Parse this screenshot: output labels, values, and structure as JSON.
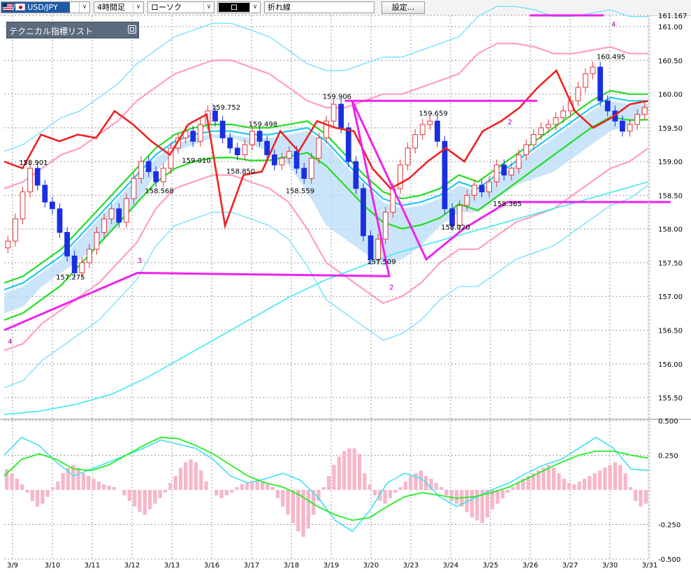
{
  "toolbar": {
    "pair": "USD/JPY",
    "timeframe": "4時間足",
    "chart_type": "ローソク",
    "chart_icon": "ロ",
    "line_type": "折れ線",
    "settings_label": "設定..."
  },
  "indicator_panel": {
    "title": "テクニカル指標リスト"
  },
  "colors": {
    "bull_candle": "#e0343a",
    "bear_candle": "#1a2fe0",
    "bollinger_outer": "#66ddff",
    "bollinger_inner": "#ff9ec0",
    "bollinger_mid": "#22dd22",
    "ma_cyan": "#20c8f0",
    "long_ma": "#40e8f0",
    "cloud_fill": "#b8dcf8",
    "cloud_pink": "#f6c0d4",
    "chikou": "#ee2222",
    "wave": "#ee22ee",
    "macd": "#40e0f0",
    "signal": "#22ee22",
    "histogram": "#f7b7c8"
  },
  "chart_data": [
    {
      "type": "candlestick",
      "title": "",
      "xlabel": "",
      "ylabel": "",
      "ylim": [
        155.2,
        161.167
      ],
      "yticks": [
        "161.167",
        "161.00",
        "160.50",
        "160.00",
        "159.50",
        "159.00",
        "158.50",
        "158.00",
        "157.50",
        "157.00",
        "156.50",
        "156.00",
        "155.50"
      ],
      "x_dates": [
        "3/9",
        "3/10",
        "3/11",
        "3/12",
        "3/13",
        "3/16",
        "3/17",
        "3/18",
        "3/19",
        "3/20",
        "3/23",
        "3/24",
        "3/25",
        "3/26",
        "3/27",
        "3/30",
        "3/31"
      ],
      "annotations": [
        "158.901",
        "157.275",
        "158.568",
        "159.010",
        "159.752",
        "158.850",
        "159.498",
        "158.559",
        "159.906",
        "157.509",
        "159.659",
        "158.020",
        "158.365",
        "160.495"
      ],
      "wave_labels": [
        "4",
        "3",
        "2",
        "2",
        "4"
      ],
      "closes": [
        157.82,
        158.15,
        158.55,
        158.9,
        158.65,
        158.4,
        158.3,
        157.95,
        157.6,
        157.35,
        157.5,
        157.7,
        157.95,
        158.15,
        158.3,
        158.1,
        158.45,
        158.75,
        159.0,
        158.85,
        158.7,
        158.9,
        159.2,
        159.35,
        159.45,
        159.3,
        159.55,
        159.75,
        159.6,
        159.35,
        159.2,
        159.1,
        159.25,
        159.45,
        159.3,
        159.1,
        158.95,
        159.05,
        159.15,
        158.9,
        158.75,
        159.05,
        159.35,
        159.6,
        159.85,
        159.5,
        159.0,
        158.6,
        157.9,
        157.55,
        157.85,
        158.25,
        158.6,
        158.95,
        159.2,
        159.4,
        159.55,
        159.6,
        159.3,
        158.3,
        158.05,
        158.35,
        158.5,
        158.65,
        158.55,
        158.7,
        158.95,
        158.8,
        158.9,
        159.1,
        159.25,
        159.4,
        159.5,
        159.55,
        159.65,
        159.75,
        159.9,
        160.1,
        160.3,
        160.4,
        159.9,
        159.75,
        159.6,
        159.45,
        159.55,
        159.7,
        159.8
      ],
      "bollinger_upper": [
        158.6,
        158.7,
        158.9,
        159.1,
        159.2,
        159.4,
        159.6,
        159.9,
        160.1,
        160.3,
        160.4,
        160.5,
        160.5,
        160.4,
        160.3,
        160.1,
        159.9,
        159.8,
        159.8,
        159.9,
        160.0,
        160.0,
        160.1,
        160.2,
        160.3,
        160.6,
        160.75,
        160.75,
        160.7,
        160.6,
        160.6,
        160.65,
        160.7,
        160.6,
        160.6
      ],
      "bollinger_middle": [
        157.2,
        157.3,
        157.5,
        157.7,
        158.0,
        158.3,
        158.6,
        158.9,
        159.2,
        159.4,
        159.5,
        159.55,
        159.55,
        159.5,
        159.5,
        159.55,
        159.6,
        159.4,
        159.1,
        158.8,
        158.55,
        158.45,
        158.5,
        158.6,
        158.8,
        158.7,
        158.9,
        159.1,
        159.3,
        159.5,
        159.7,
        159.9,
        160.05,
        160.0,
        160.0
      ],
      "bollinger_lower": [
        156.2,
        156.3,
        156.6,
        156.8,
        157.0,
        157.2,
        157.5,
        157.8,
        158.3,
        158.6,
        158.7,
        158.8,
        158.8,
        158.7,
        158.6,
        158.4,
        158.0,
        157.5,
        157.3,
        157.1,
        156.9,
        157.0,
        157.2,
        157.5,
        157.7,
        157.7,
        157.9,
        158.1,
        158.2,
        158.3,
        158.5,
        158.7,
        158.9,
        159.0,
        159.2
      ],
      "long_ma": [
        155.25,
        155.3,
        155.4,
        155.55,
        155.8,
        156.1,
        156.4,
        156.7,
        157.0,
        157.25,
        157.45,
        157.65,
        157.8,
        157.95,
        158.1,
        158.25,
        158.4,
        158.55,
        158.7
      ],
      "chikou_span": [
        159.0,
        158.9,
        159.4,
        159.3,
        159.4,
        159.35,
        159.75,
        159.55,
        159.3,
        159.1,
        159.55,
        159.7,
        158.05,
        158.8,
        158.85,
        159.45,
        159.15,
        159.6,
        159.5,
        159.45,
        158.9,
        158.6,
        158.75,
        159.0,
        159.2,
        159.0,
        159.45,
        159.6,
        159.8,
        160.1,
        160.35,
        159.75,
        159.5,
        159.65,
        159.85,
        159.9
      ],
      "wave_points": [
        [
          0,
          156.5
        ],
        [
          18,
          157.35
        ],
        [
          52,
          157.3
        ],
        [
          47,
          159.9
        ],
        [
          57,
          157.55
        ],
        [
          62,
          158.0
        ],
        [
          68,
          158.4
        ],
        [
          90,
          158.4
        ]
      ]
    },
    {
      "type": "line",
      "title": "",
      "ylim": [
        -0.5,
        0.5
      ],
      "yticks": [
        "0.500",
        "0.250",
        "-0.250",
        "-0.500"
      ],
      "macd": [
        0.25,
        0.38,
        0.32,
        0.2,
        0.1,
        0.15,
        0.2,
        0.25,
        0.3,
        0.36,
        0.33,
        0.3,
        0.22,
        0.1,
        0.05,
        0.08,
        0.12,
        0.07,
        -0.05,
        -0.22,
        -0.3,
        -0.15,
        0.05,
        0.12,
        0.08,
        -0.05,
        -0.12,
        -0.06,
        0.0,
        0.05,
        0.12,
        0.18,
        0.22,
        0.3,
        0.38,
        0.3,
        0.15,
        0.14
      ],
      "signal": [
        0.1,
        0.22,
        0.26,
        0.22,
        0.15,
        0.14,
        0.18,
        0.25,
        0.32,
        0.38,
        0.37,
        0.32,
        0.26,
        0.18,
        0.1,
        0.05,
        0.02,
        -0.04,
        -0.12,
        -0.18,
        -0.22,
        -0.2,
        -0.12,
        -0.05,
        -0.02,
        -0.04,
        -0.06,
        -0.05,
        -0.02,
        0.02,
        0.08,
        0.14,
        0.2,
        0.25,
        0.28,
        0.28,
        0.25,
        0.23
      ],
      "histogram": [
        0.15,
        0.12,
        0.08,
        0.04,
        -0.02,
        -0.08,
        -0.12,
        -0.1,
        -0.05,
        0.02,
        0.06,
        0.12,
        0.16,
        0.18,
        0.16,
        0.12,
        0.1,
        0.08,
        0.06,
        0.04,
        0.03,
        0.02,
        0.0,
        -0.04,
        -0.08,
        -0.12,
        -0.16,
        -0.18,
        -0.14,
        -0.1,
        -0.06,
        -0.02,
        0.05,
        0.1,
        0.16,
        0.2,
        0.22,
        0.2,
        0.14,
        0.06,
        0.0,
        -0.04,
        -0.06,
        -0.04,
        -0.02,
        0.02,
        0.04,
        0.05,
        0.06,
        0.07,
        0.06,
        0.04,
        0.02,
        -0.06,
        -0.12,
        -0.18,
        -0.24,
        -0.3,
        -0.34,
        -0.28,
        -0.18,
        -0.08,
        0.02,
        0.1,
        0.18,
        0.24,
        0.28,
        0.3,
        0.3,
        0.26,
        0.12,
        0.04,
        -0.04,
        -0.08,
        -0.1,
        -0.06,
        -0.02,
        0.02,
        0.06,
        0.1,
        0.12,
        0.14,
        0.1,
        0.08,
        0.05,
        0.02,
        -0.04,
        -0.08,
        -0.1,
        -0.12,
        -0.16,
        -0.2,
        -0.22,
        -0.24,
        -0.2,
        -0.14,
        -0.1,
        -0.06,
        -0.02,
        0.02,
        0.05,
        0.08,
        0.1,
        0.12,
        0.14,
        0.16,
        0.18,
        0.16,
        0.12,
        0.08,
        0.05,
        0.04,
        0.06,
        0.08,
        0.1,
        0.12,
        0.14,
        0.16,
        0.18,
        0.2,
        0.18,
        0.12,
        0.02,
        -0.08,
        -0.12,
        -0.1
      ]
    }
  ]
}
